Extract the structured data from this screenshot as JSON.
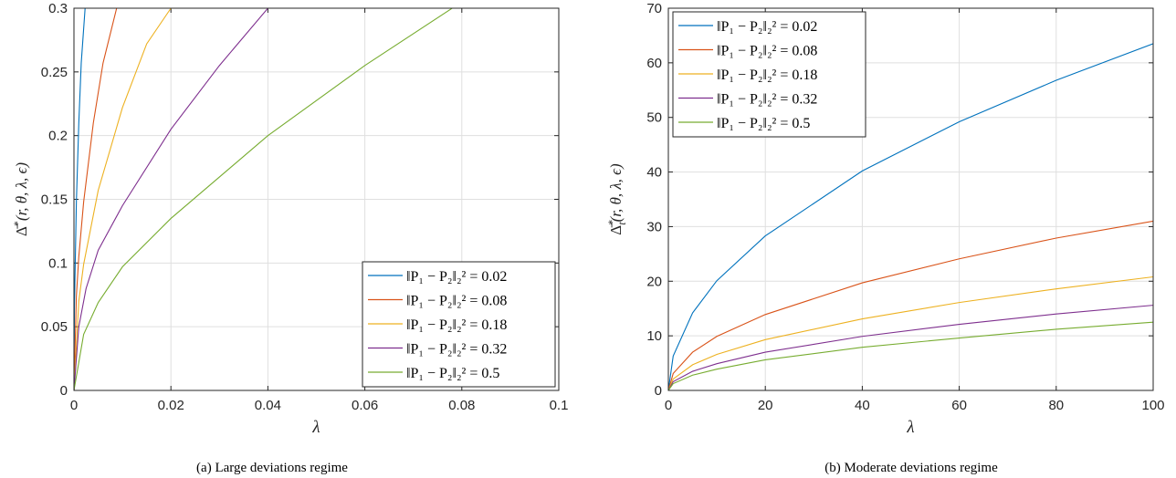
{
  "legend_labels": [
    "‖P₁ − P₂‖₂² = 0.02",
    "‖P₁ − P₂‖₂² = 0.08",
    "‖P₁ − P₂‖₂² = 0.18",
    "‖P₁ − P₂‖₂² = 0.32",
    "‖P₁ − P₂‖₂² = 0.5"
  ],
  "colors": [
    "#0072BD",
    "#D95319",
    "#EDB120",
    "#7E2F8E",
    "#77AC30"
  ],
  "chart_data": [
    {
      "type": "line",
      "caption": "(a) Large deviations regime",
      "xlabel": "λ",
      "ylabel": "Δ̄*(r, θ, λ, ϵ)",
      "xlim": [
        0,
        0.1
      ],
      "ylim": [
        0,
        0.3
      ],
      "xticks": [
        "0",
        "0.02",
        "0.04",
        "0.06",
        "0.08",
        "0.1"
      ],
      "yticks": [
        "0",
        "0.05",
        "0.1",
        "0.15",
        "0.2",
        "0.25",
        "0.3"
      ],
      "grid": true,
      "legend_position": "bottom-right",
      "series": [
        {
          "name": "‖P₁ − P₂‖₂² = 0.02",
          "x": [
            0,
            0.0001,
            0.0005,
            0.001,
            0.0015,
            0.0023,
            0.1
          ],
          "y": [
            0,
            0.066,
            0.148,
            0.21,
            0.257,
            0.3,
            0.3
          ]
        },
        {
          "name": "‖P₁ − P₂‖₂² = 0.08",
          "x": [
            0,
            0.0005,
            0.001,
            0.002,
            0.004,
            0.006,
            0.0088,
            0.1
          ],
          "y": [
            0,
            0.074,
            0.105,
            0.148,
            0.21,
            0.257,
            0.3,
            0.3
          ]
        },
        {
          "name": "‖P₁ − P₂‖₂² = 0.18",
          "x": [
            0,
            0.001,
            0.002,
            0.005,
            0.01,
            0.015,
            0.02,
            0.1
          ],
          "y": [
            0,
            0.07,
            0.099,
            0.157,
            0.222,
            0.272,
            0.3,
            0.3
          ]
        },
        {
          "name": "‖P₁ − P₂‖₂² = 0.32",
          "x": [
            0,
            0.001,
            0.0025,
            0.005,
            0.01,
            0.02,
            0.03,
            0.04,
            0.1
          ],
          "y": [
            0,
            0.05,
            0.08,
            0.11,
            0.145,
            0.205,
            0.255,
            0.3,
            0.3
          ]
        },
        {
          "name": "‖P₁ − P₂‖₂² = 0.5",
          "x": [
            0,
            0.002,
            0.005,
            0.01,
            0.02,
            0.04,
            0.06,
            0.078,
            0.1
          ],
          "y": [
            0,
            0.044,
            0.069,
            0.097,
            0.135,
            0.2,
            0.255,
            0.3,
            0.3
          ]
        }
      ]
    },
    {
      "type": "line",
      "caption": "(b) Moderate deviations regime",
      "xlabel": "λ",
      "ylabel": "Δ̄*t(r, θ, λ, ϵ)",
      "xlim": [
        0,
        100
      ],
      "ylim": [
        0,
        70
      ],
      "xticks": [
        "0",
        "20",
        "40",
        "60",
        "80",
        "100"
      ],
      "yticks": [
        "0",
        "10",
        "20",
        "30",
        "40",
        "50",
        "60",
        "70"
      ],
      "grid": true,
      "legend_position": "top-left",
      "series": [
        {
          "name": "‖P₁ − P₂‖₂² = 0.02",
          "x": [
            0,
            1,
            5,
            10,
            20,
            40,
            60,
            80,
            100
          ],
          "y": [
            0,
            6.3,
            14.2,
            20.1,
            28.3,
            40.2,
            49.2,
            56.8,
            63.5
          ]
        },
        {
          "name": "‖P₁ − P₂‖₂² = 0.08",
          "x": [
            0,
            1,
            5,
            10,
            20,
            40,
            60,
            80,
            100
          ],
          "y": [
            0,
            3.1,
            7.0,
            9.9,
            13.9,
            19.7,
            24.1,
            27.9,
            31.0
          ]
        },
        {
          "name": "‖P₁ − P₂‖₂² = 0.18",
          "x": [
            0,
            1,
            5,
            10,
            20,
            40,
            60,
            80,
            100
          ],
          "y": [
            0,
            2.1,
            4.7,
            6.6,
            9.3,
            13.1,
            16.1,
            18.6,
            20.8
          ]
        },
        {
          "name": "‖P₁ − P₂‖₂² = 0.32",
          "x": [
            0,
            1,
            5,
            10,
            20,
            40,
            60,
            80,
            100
          ],
          "y": [
            0,
            1.6,
            3.5,
            4.9,
            7.0,
            9.9,
            12.1,
            14.0,
            15.6
          ]
        },
        {
          "name": "‖P₁ − P₂‖₂² = 0.5",
          "x": [
            0,
            1,
            5,
            10,
            20,
            40,
            60,
            80,
            100
          ],
          "y": [
            0,
            1.25,
            2.8,
            3.9,
            5.6,
            7.9,
            9.6,
            11.2,
            12.5
          ]
        }
      ]
    }
  ]
}
